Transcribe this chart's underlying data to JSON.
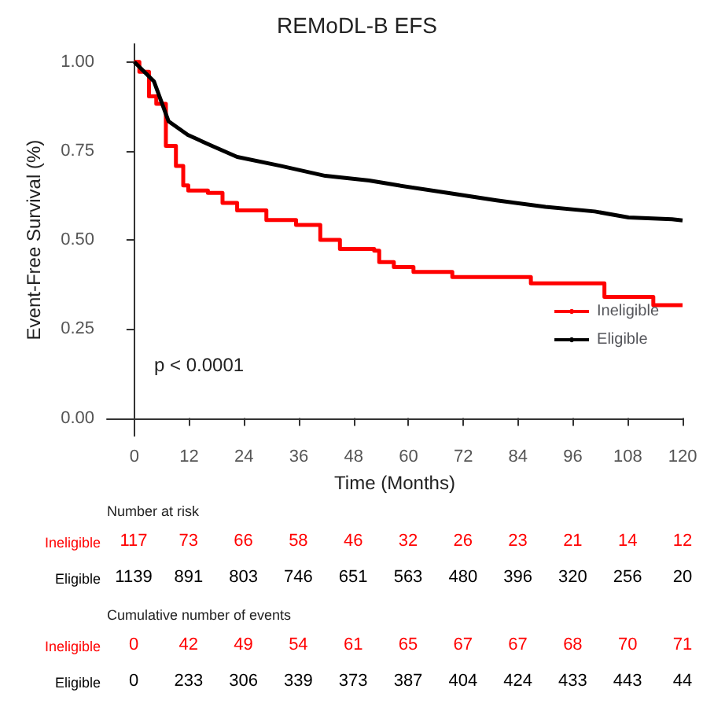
{
  "chart_data": [
    {
      "type": "step",
      "title": "REMoDL-B EFS",
      "xlabel": "Time (Months)",
      "ylabel": "Event-Free Survival (%)",
      "xlim": [
        -6,
        120
      ],
      "xticks": [
        0,
        12,
        24,
        36,
        48,
        60,
        72,
        84,
        96,
        108,
        120
      ],
      "ylim": [
        -0.05,
        1.05
      ],
      "yticks": [
        {
          "value": 0,
          "label": "0.00"
        },
        {
          "value": 0.25,
          "label": "0.25"
        },
        {
          "value": 0.5,
          "label": "0.50"
        },
        {
          "value": 0.75,
          "label": "0.75"
        },
        {
          "value": 1,
          "label": "1.00"
        }
      ],
      "legend": "bottom right",
      "grid": false,
      "annotations": [
        "p < 0.0001"
      ],
      "series": [
        {
          "name": "Ineligible",
          "color": "#ff0000",
          "x": [
            0,
            1.1,
            3.2,
            4.8,
            6.9,
            9.1,
            10.7,
            11.8,
            16.1,
            19.3,
            22.5,
            28.9,
            35.4,
            40.7,
            45,
            52.5,
            53.6,
            56.8,
            61.1,
            69.6,
            86.8,
            102.9,
            113.6,
            120
          ],
          "values": [
            1,
            0.972,
            0.903,
            0.882,
            0.764,
            0.708,
            0.653,
            0.639,
            0.632,
            0.604,
            0.583,
            0.556,
            0.542,
            0.5,
            0.475,
            0.47,
            0.438,
            0.424,
            0.41,
            0.396,
            0.378,
            0.34,
            0.317,
            0.317
          ]
        },
        {
          "name": "Eligible",
          "type": "line",
          "color": "#000000",
          "x": [
            0,
            4.3,
            7.5,
            11.7,
            17,
            22.5,
            32,
            41.8,
            51.4,
            57.9,
            68.6,
            79.3,
            90,
            100.8,
            108.2,
            117.7,
            120
          ],
          "values": [
            1,
            0.945,
            0.833,
            0.795,
            0.764,
            0.733,
            0.708,
            0.68,
            0.667,
            0.653,
            0.632,
            0.611,
            0.593,
            0.58,
            0.563,
            0.558,
            0.555
          ]
        }
      ]
    },
    {
      "type": "other",
      "title": "Number at risk",
      "y_categories": [
        "Ineligible",
        "Eligible"
      ],
      "colors": [
        "#ff0000",
        "#000000"
      ],
      "annotations": [
        "117",
        "73",
        "66",
        "58",
        "46",
        "32",
        "26",
        "23",
        "21",
        "14",
        "12",
        "1139",
        "891",
        "803",
        "746",
        "651",
        "563",
        "480",
        "396",
        "320",
        "256",
        "20"
      ]
    },
    {
      "type": "other",
      "title": "Cumulative number of events",
      "y_categories": [
        "Ineligible",
        "Eligible"
      ],
      "colors": [
        "#ff0000",
        "#000000"
      ],
      "annotations": [
        "0",
        "42",
        "49",
        "54",
        "61",
        "65",
        "67",
        "67",
        "68",
        "70",
        "71",
        "0",
        "233",
        "306",
        "339",
        "373",
        "387",
        "404",
        "424",
        "433",
        "443",
        "44"
      ]
    }
  ]
}
